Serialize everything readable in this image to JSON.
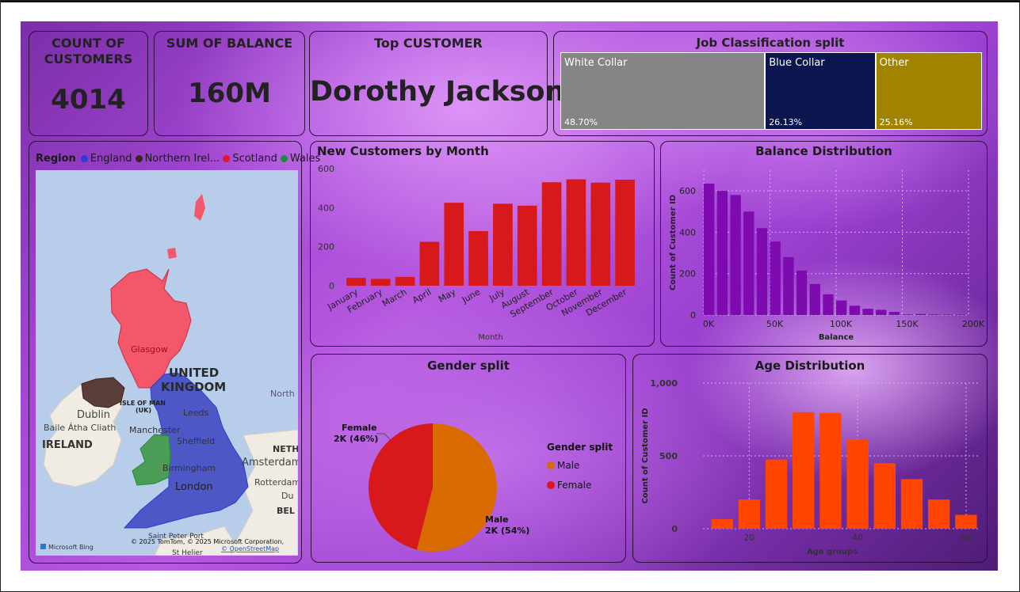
{
  "kpis": {
    "customers": {
      "title_l1": "COUNT OF",
      "title_l2": "CUSTOMERS",
      "value": "4014"
    },
    "balance": {
      "title": "SUM OF BALANCE",
      "value": "160M"
    },
    "top_customer": {
      "title": "Top CUSTOMER",
      "value": "Dorothy Jackson"
    }
  },
  "job_split": {
    "title": "Job Classification split",
    "items": [
      {
        "label": "White Collar",
        "pct_label": "48.70%",
        "share": 48.7,
        "color": "#858585"
      },
      {
        "label": "Blue Collar",
        "pct_label": "26.13%",
        "share": 26.13,
        "color": "#0b1550"
      },
      {
        "label": "Other",
        "pct_label": "25.16%",
        "share": 25.16,
        "color": "#a08400"
      }
    ]
  },
  "map": {
    "legend_title": "Region",
    "legend": [
      {
        "label": "England",
        "color": "#2a3fd1"
      },
      {
        "label": "Northern Irel...",
        "color": "#3b2320"
      },
      {
        "label": "Scotland",
        "color": "#e8132b"
      },
      {
        "label": "Wales",
        "color": "#1d8b3a"
      }
    ],
    "labels": {
      "uk1": "UNITED",
      "uk2": "KINGDOM",
      "glasgow": "Glasgow",
      "isle1": "ISLE OF MAN",
      "isle2": "(UK)",
      "dublin": "Dublin",
      "baile": "Baile Átha Cliath",
      "ireland": "IRELAND",
      "leeds": "Leeds",
      "manchester": "Manchester",
      "sheffield": "Sheffield",
      "birmingham": "Birmingham",
      "london": "London",
      "north": "North",
      "neth": "NETH",
      "amsterdam": "Amsterdam",
      "rotterdam": "Rotterdam",
      "du": "Du",
      "bel": "BEL",
      "saintpeter": "Saint Peter Port",
      "stmalo": "St Helier",
      "copyright": "© 2025 TomTom, © 2025 Microsoft Corporation,",
      "osm": "© OpenStreetMap",
      "bing": "Microsoft Bing"
    }
  },
  "chart_data": [
    {
      "type": "bar",
      "title": "New Customers by Month",
      "xlabel": "Month",
      "ylabel": "",
      "categories": [
        "January",
        "February",
        "March",
        "April",
        "May",
        "June",
        "July",
        "August",
        "September",
        "October",
        "November",
        "December"
      ],
      "values": [
        40,
        35,
        45,
        225,
        425,
        280,
        420,
        410,
        530,
        545,
        528,
        543
      ],
      "ylim": [
        0,
        600
      ],
      "yticks": [
        "0",
        "200",
        "400",
        "600"
      ],
      "color": "#d7191c"
    },
    {
      "type": "bar",
      "title": "Balance Distribution",
      "xlabel": "Balance",
      "ylabel": "Count of Customer ID",
      "x": [
        0,
        10000,
        20000,
        30000,
        40000,
        50000,
        60000,
        70000,
        80000,
        90000,
        100000,
        110000,
        120000,
        130000,
        140000,
        150000,
        160000,
        170000,
        180000,
        190000
      ],
      "values": [
        635,
        600,
        580,
        500,
        420,
        355,
        280,
        215,
        150,
        100,
        70,
        45,
        30,
        25,
        15,
        3,
        5,
        3,
        2,
        2
      ],
      "ylim": [
        0,
        700
      ],
      "xticks": [
        "0K",
        "50K",
        "100K",
        "150K",
        "200K"
      ],
      "yticks": [
        "0",
        "200",
        "400",
        "600"
      ],
      "color": "#7d0bb0"
    },
    {
      "type": "pie",
      "title": "Gender split",
      "legend_title": "Gender split",
      "slices": [
        {
          "name": "Male",
          "value": 54,
          "label_l1": "Male",
          "label_l2": "2K (54%)",
          "color": "#d86a00"
        },
        {
          "name": "Female",
          "value": 46,
          "label_l1": "Female",
          "label_l2": "2K (46%)",
          "color": "#d7191c"
        }
      ]
    },
    {
      "type": "bar",
      "title": "Age Distribution",
      "xlabel": "Age groups",
      "ylabel": "Count of Customer ID",
      "x": [
        15,
        20,
        25,
        30,
        35,
        40,
        45,
        50,
        55,
        60
      ],
      "values": [
        65,
        200,
        475,
        800,
        795,
        615,
        450,
        340,
        200,
        95
      ],
      "ylim": [
        0,
        1000
      ],
      "xticks": [
        "20",
        "40",
        "60"
      ],
      "yticks": [
        "0",
        "500",
        "1,000"
      ],
      "color": "#ff4500"
    }
  ]
}
